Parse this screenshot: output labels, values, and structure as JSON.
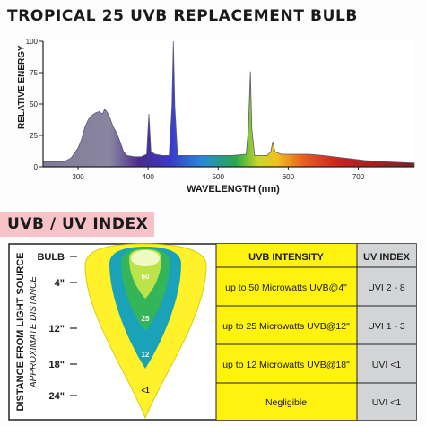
{
  "page_title": "TROPICAL 25 UVB REPLACEMENT BULB",
  "section_title": "UVB / UV INDEX",
  "chart_data": [
    {
      "type": "area",
      "xlabel": "WAVELENGTH (nm)",
      "ylabel": "RELATIVE ENERGY",
      "xlim": [
        250,
        780
      ],
      "ylim": [
        0,
        100
      ],
      "x_ticks": [
        300,
        400,
        500,
        600,
        700
      ],
      "y_ticks": [
        0,
        25,
        50,
        75,
        100
      ],
      "colors": {
        "fill_uv": "#8b87a3",
        "spectrum": [
          "#4b2a8a",
          "#3a38c8",
          "#2a8ad8",
          "#2aa84a",
          "#c8d82a",
          "#f0c020",
          "#e86020",
          "#c82020",
          "#802020"
        ]
      },
      "spectrum_points": [
        [
          250,
          4
        ],
        [
          280,
          4
        ],
        [
          290,
          7
        ],
        [
          300,
          15
        ],
        [
          305,
          22
        ],
        [
          310,
          32
        ],
        [
          315,
          38
        ],
        [
          320,
          41
        ],
        [
          325,
          43
        ],
        [
          330,
          44
        ],
        [
          335,
          42
        ],
        [
          338,
          46
        ],
        [
          342,
          43
        ],
        [
          346,
          38
        ],
        [
          350,
          32
        ],
        [
          355,
          27
        ],
        [
          360,
          20
        ],
        [
          365,
          12
        ],
        [
          370,
          9
        ],
        [
          380,
          8
        ],
        [
          390,
          8
        ],
        [
          398,
          10
        ],
        [
          401,
          42
        ],
        [
          404,
          12
        ],
        [
          410,
          10
        ],
        [
          420,
          9
        ],
        [
          430,
          9
        ],
        [
          434,
          48
        ],
        [
          436,
          100
        ],
        [
          438,
          48
        ],
        [
          442,
          9
        ],
        [
          460,
          9
        ],
        [
          480,
          9
        ],
        [
          500,
          9
        ],
        [
          520,
          9
        ],
        [
          540,
          10
        ],
        [
          543,
          30
        ],
        [
          546,
          76
        ],
        [
          548,
          30
        ],
        [
          552,
          9
        ],
        [
          570,
          9
        ],
        [
          575,
          12
        ],
        [
          578,
          20
        ],
        [
          581,
          12
        ],
        [
          590,
          10
        ],
        [
          610,
          10
        ],
        [
          630,
          10
        ],
        [
          650,
          9
        ],
        [
          680,
          7
        ],
        [
          710,
          5
        ],
        [
          740,
          4
        ],
        [
          780,
          3
        ]
      ]
    },
    {
      "type": "table",
      "ylabel": "DISTANCE FROM LIGHT SOURCE",
      "ylabel_sub": "APPROXIMATE DISTANCE",
      "distance_ticks": [
        "BULB",
        "4\"",
        "12\"",
        "18\"",
        "24\""
      ],
      "zone_labels": [
        "50",
        "25",
        "12",
        "<1"
      ],
      "columns": [
        "UVB INTENSITY",
        "UV INDEX"
      ],
      "rows": [
        [
          "up to 50 Microwatts UVB@4\"",
          "UVI 2 - 8"
        ],
        [
          "up to 25 Microwatts UVB@12\"",
          "UVI 1 - 3"
        ],
        [
          "up to 12 Microwatts UVB@18\"",
          "UVI <1"
        ],
        [
          "Negligible",
          "UVI <1"
        ]
      ],
      "colors": {
        "intensity_bg": "#fff20f",
        "index_bg": "#d2d4d6",
        "zone_outer": "#fff22a",
        "zone_12": "#1aa3b8",
        "zone_25": "#34b55a",
        "zone_50": "#bde34a"
      }
    }
  ]
}
